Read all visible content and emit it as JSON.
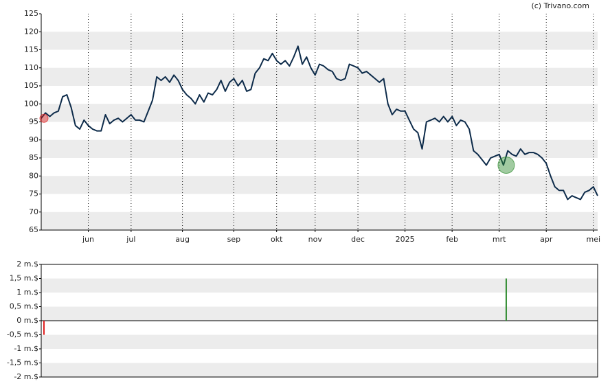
{
  "source": "(c) Trivano.com",
  "chart_data": [
    {
      "type": "line",
      "categories": [
        null,
        null,
        null,
        null,
        null,
        null,
        null,
        null,
        null,
        null,
        null,
        "jun",
        null,
        null,
        null,
        null,
        null,
        null,
        null,
        null,
        null,
        "jul",
        null,
        null,
        null,
        null,
        null,
        null,
        null,
        null,
        null,
        null,
        null,
        "aug",
        null,
        null,
        null,
        null,
        null,
        null,
        null,
        null,
        null,
        null,
        null,
        "sep",
        null,
        null,
        null,
        null,
        null,
        null,
        null,
        null,
        null,
        "okt",
        null,
        null,
        null,
        null,
        null,
        null,
        null,
        null,
        "nov",
        null,
        null,
        null,
        null,
        null,
        null,
        null,
        null,
        null,
        "dec",
        null,
        null,
        null,
        null,
        null,
        null,
        null,
        null,
        null,
        null,
        "2025",
        null,
        null,
        null,
        null,
        null,
        null,
        null,
        null,
        null,
        null,
        "feb",
        null,
        null,
        null,
        null,
        null,
        null,
        null,
        null,
        null,
        null,
        "mrt",
        null,
        null,
        null,
        null,
        null,
        null,
        null,
        null,
        null,
        null,
        "apr",
        null,
        null,
        null,
        null,
        null,
        null,
        null,
        null,
        null,
        null,
        "mei",
        null
      ],
      "values": [
        96,
        97.5,
        96.5,
        97.5,
        98,
        102,
        102.5,
        99,
        94,
        93,
        95.5,
        94,
        93,
        92.5,
        92.5,
        97,
        94.5,
        95.5,
        96,
        95,
        96,
        97,
        95.5,
        95.5,
        95,
        98,
        101,
        107.5,
        106.5,
        107.5,
        106,
        108,
        106.5,
        104,
        102.5,
        101.5,
        100,
        102.5,
        100.5,
        103,
        102.5,
        104,
        106.5,
        103.5,
        106,
        107,
        105,
        106.5,
        103.5,
        104,
        108.5,
        110,
        112.5,
        112,
        114,
        112,
        111,
        112,
        110.5,
        113,
        116,
        111,
        113,
        110,
        108,
        111,
        110.5,
        109.5,
        109,
        107,
        106.5,
        107,
        111,
        110.5,
        110,
        108.5,
        109,
        108,
        107,
        106,
        107,
        100,
        97,
        98.5,
        98,
        98,
        95.5,
        93,
        92,
        87.5,
        95,
        95.5,
        96,
        95,
        96.5,
        95,
        96.5,
        94,
        95.5,
        95,
        93,
        87,
        86,
        84.5,
        83,
        85,
        85.5,
        86,
        83,
        87,
        86,
        85.5,
        87.5,
        86,
        86.5,
        86.5,
        86,
        85,
        83.5,
        80,
        77,
        76,
        76,
        73.5,
        74.5,
        74,
        73.5,
        75.5,
        76,
        77,
        74.5
      ],
      "color": "#0d2b4a",
      "ylim": [
        65,
        125
      ],
      "yticks": [
        65,
        70,
        75,
        80,
        85,
        90,
        95,
        100,
        105,
        110,
        115,
        120,
        125
      ],
      "grid": true
    },
    {
      "type": "bar",
      "values": [
        -0.5,
        null,
        null,
        null,
        null,
        null,
        null,
        null,
        null,
        null,
        null,
        null,
        null,
        null,
        null,
        null,
        null,
        null,
        null,
        null,
        null,
        null,
        null,
        null,
        null,
        null,
        null,
        null,
        null,
        null,
        null,
        null,
        null,
        null,
        null,
        null,
        null,
        null,
        null,
        null,
        null,
        null,
        null,
        null,
        null,
        null,
        null,
        null,
        null,
        null,
        null,
        null,
        null,
        null,
        null,
        null,
        null,
        null,
        null,
        null,
        null,
        null,
        null,
        null,
        null,
        null,
        null,
        null,
        null,
        null,
        null,
        null,
        null,
        null,
        null,
        null,
        null,
        null,
        null,
        null,
        null,
        null,
        null,
        null,
        null,
        null,
        null,
        null,
        null,
        null,
        null,
        null,
        null,
        null,
        null,
        null,
        null,
        null,
        null,
        null,
        null,
        null,
        null,
        null,
        null,
        null,
        null,
        null,
        1.5,
        null,
        null,
        null,
        null,
        null,
        null,
        null,
        null,
        null,
        null,
        null,
        null,
        null,
        null,
        null,
        null,
        null,
        null,
        null,
        null,
        null,
        null
      ],
      "positive_color": "#2e8b2e",
      "negative_color": "#e02020",
      "ylim": [
        -2,
        2
      ],
      "yticks": [
        {
          "value": -2,
          "label": "-2 m.$"
        },
        {
          "value": -1.5,
          "label": "-1,5 m.$"
        },
        {
          "value": -1,
          "label": "-1 m.$"
        },
        {
          "value": -0.5,
          "label": "-0,5 m.$"
        },
        {
          "value": 0,
          "label": "0 m.$"
        },
        {
          "value": 0.5,
          "label": "0,5 m.$"
        },
        {
          "value": 1,
          "label": "1 m.$"
        },
        {
          "value": 1.5,
          "label": "1,5 m.$"
        },
        {
          "value": 2,
          "label": "2 m.$"
        }
      ],
      "grid": true
    }
  ]
}
